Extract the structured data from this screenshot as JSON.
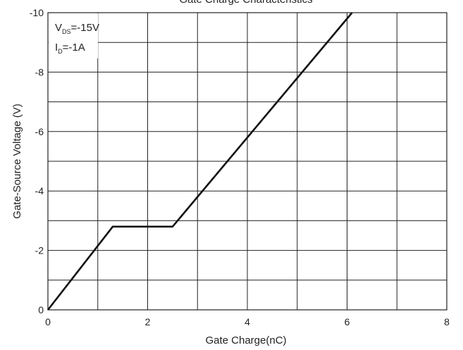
{
  "chart_data": {
    "type": "line",
    "title": "Gate Charge Characteristics",
    "xlabel": "Gate Charge(nC)",
    "ylabel": "Gate-Source Voltage (V)",
    "xlim": [
      0,
      8
    ],
    "ylim": [
      0,
      -10
    ],
    "x_ticks": [
      0,
      1,
      2,
      3,
      4,
      5,
      6,
      7,
      8
    ],
    "x_tick_labels": [
      "0",
      "2",
      "4",
      "6",
      "8"
    ],
    "y_ticks": [
      0,
      -1,
      -2,
      -3,
      -4,
      -5,
      -6,
      -7,
      -8,
      -9,
      -10
    ],
    "y_tick_labels": [
      "0",
      "-2",
      "-4",
      "-6",
      "-8",
      "-10"
    ],
    "grid": true,
    "series": [
      {
        "x": [
          0,
          1.3,
          2.5,
          6.1
        ],
        "y": [
          0,
          -2.8,
          -2.8,
          -10
        ]
      }
    ],
    "annotations": [
      {
        "main": "V",
        "sub": "DS",
        "rest": "=-15V"
      },
      {
        "main": "I",
        "sub": "D",
        "rest": "=-1A"
      }
    ],
    "line_color": "#111111",
    "grid_color": "#222222"
  }
}
